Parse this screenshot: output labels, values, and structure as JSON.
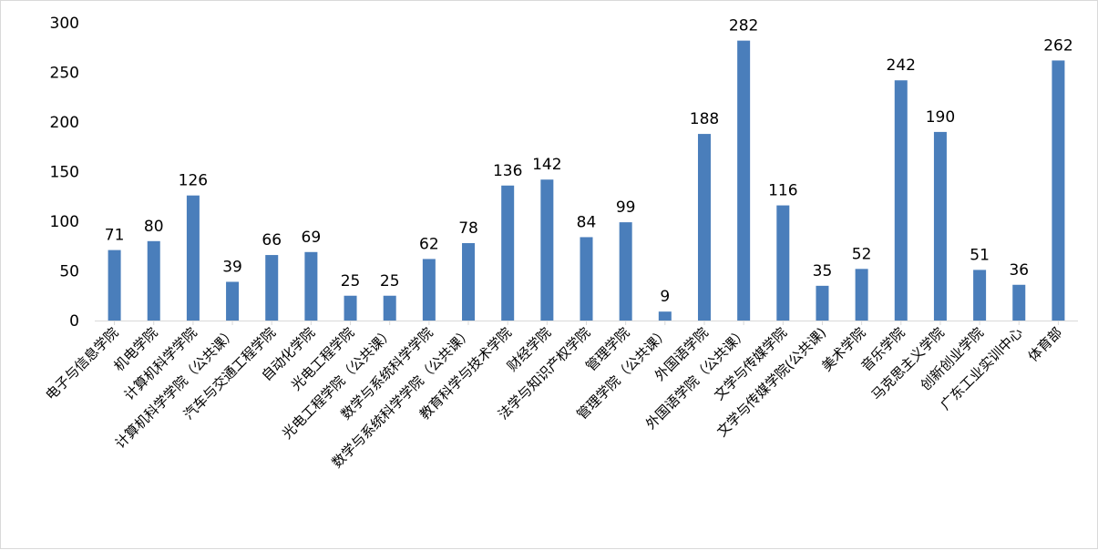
{
  "chart_data": {
    "type": "bar",
    "categories": [
      "电子与信息学院",
      "机电学院",
      "计算机科学学院",
      "计算机科学学院（公共课）",
      "汽车与交通工程学院",
      "自动化学院",
      "光电工程学院",
      "光电工程学院（公共课）",
      "数学与系统科学学院",
      "数学与系统科学学院（公共课）",
      "教育科学与技术学院",
      "财经学院",
      "法学与知识产权学院",
      "管理学院",
      "管理学院（公共课）",
      "外国语学院",
      "外国语学院（公共课）",
      "文学与传媒学院",
      "文学与传媒学院(公共课)",
      "美术学院",
      "音乐学院",
      "马克思主义学院",
      "创新创业学院",
      "广东工业实训中心",
      "体育部"
    ],
    "values": [
      71,
      80,
      126,
      39,
      66,
      69,
      25,
      25,
      62,
      78,
      136,
      142,
      84,
      99,
      9,
      188,
      282,
      116,
      35,
      52,
      242,
      190,
      51,
      36,
      262
    ],
    "title": "",
    "xlabel": "",
    "ylabel": "",
    "ylim": [
      0,
      300
    ],
    "yticks": [
      0,
      50,
      100,
      150,
      200,
      250,
      300
    ],
    "grid": false,
    "legend": "none",
    "data_labels": true,
    "bar_color": "#4a7ebb"
  }
}
